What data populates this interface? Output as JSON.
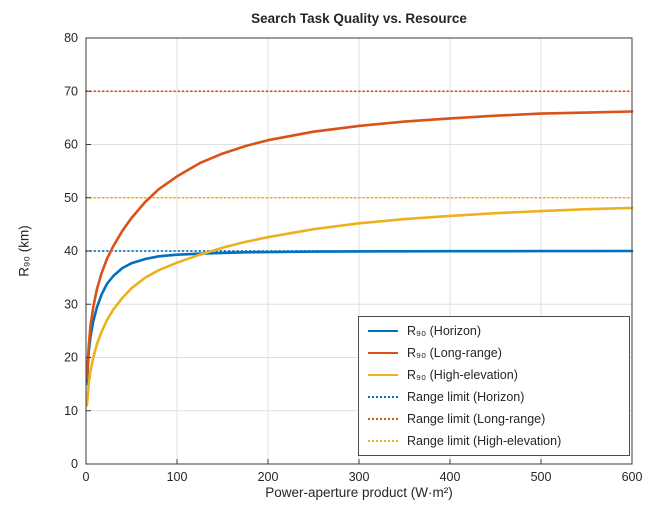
{
  "chart_data": {
    "type": "line",
    "title": "Search Task Quality vs. Resource",
    "xlabel": "Power-aperture product (W·m²)",
    "ylabel": "R₉₀ (km)",
    "xlim": [
      0,
      600
    ],
    "ylim": [
      0,
      80
    ],
    "xticks": [
      0,
      100,
      200,
      300,
      400,
      500,
      600
    ],
    "yticks": [
      0,
      10,
      20,
      30,
      40,
      50,
      60,
      70,
      80
    ],
    "grid": true,
    "legend_position": "lower right",
    "x": [
      1,
      3,
      5,
      8,
      12,
      17,
      23,
      30,
      40,
      50,
      65,
      80,
      100,
      125,
      150,
      175,
      200,
      250,
      300,
      350,
      400,
      450,
      500,
      550,
      600
    ],
    "series": [
      {
        "key": "horizon",
        "name": "R₉₀ (Horizon)",
        "style": "solid",
        "color": "#0072BD",
        "values": [
          15.0,
          21.0,
          23.9,
          26.8,
          29.4,
          31.8,
          33.8,
          35.3,
          36.8,
          37.7,
          38.5,
          39.0,
          39.3,
          39.5,
          39.65,
          39.75,
          39.8,
          39.88,
          39.92,
          39.94,
          39.96,
          39.97,
          39.98,
          39.99,
          40.0
        ]
      },
      {
        "key": "long-range",
        "name": "R₉₀ (Long-range)",
        "style": "solid",
        "color": "#D95319",
        "values": [
          16.0,
          22.0,
          26.0,
          29.5,
          32.8,
          35.8,
          38.5,
          40.9,
          43.8,
          46.2,
          49.2,
          51.6,
          54.0,
          56.5,
          58.3,
          59.7,
          60.8,
          62.4,
          63.5,
          64.3,
          64.9,
          65.4,
          65.8,
          66.0,
          66.2
        ]
      },
      {
        "key": "high-elevation",
        "name": "R₉₀ (High-elevation)",
        "style": "solid",
        "color": "#EDB120",
        "values": [
          11.0,
          15.0,
          17.5,
          20.0,
          22.5,
          24.8,
          27.0,
          29.0,
          31.2,
          33.0,
          35.0,
          36.4,
          37.8,
          39.3,
          40.6,
          41.7,
          42.6,
          44.1,
          45.2,
          46.0,
          46.6,
          47.1,
          47.5,
          47.85,
          48.1
        ]
      },
      {
        "key": "limit-horizon",
        "name": "Range limit (Horizon)",
        "style": "dotted",
        "color": "#0072BD",
        "constant": 40
      },
      {
        "key": "limit-long-range",
        "name": "Range limit (Long-range)",
        "style": "dotted",
        "color": "#D95319",
        "constant": 70
      },
      {
        "key": "limit-high-elevation",
        "name": "Range limit (High-elevation)",
        "style": "dotted",
        "color": "#EDB120",
        "constant": 50
      }
    ]
  }
}
